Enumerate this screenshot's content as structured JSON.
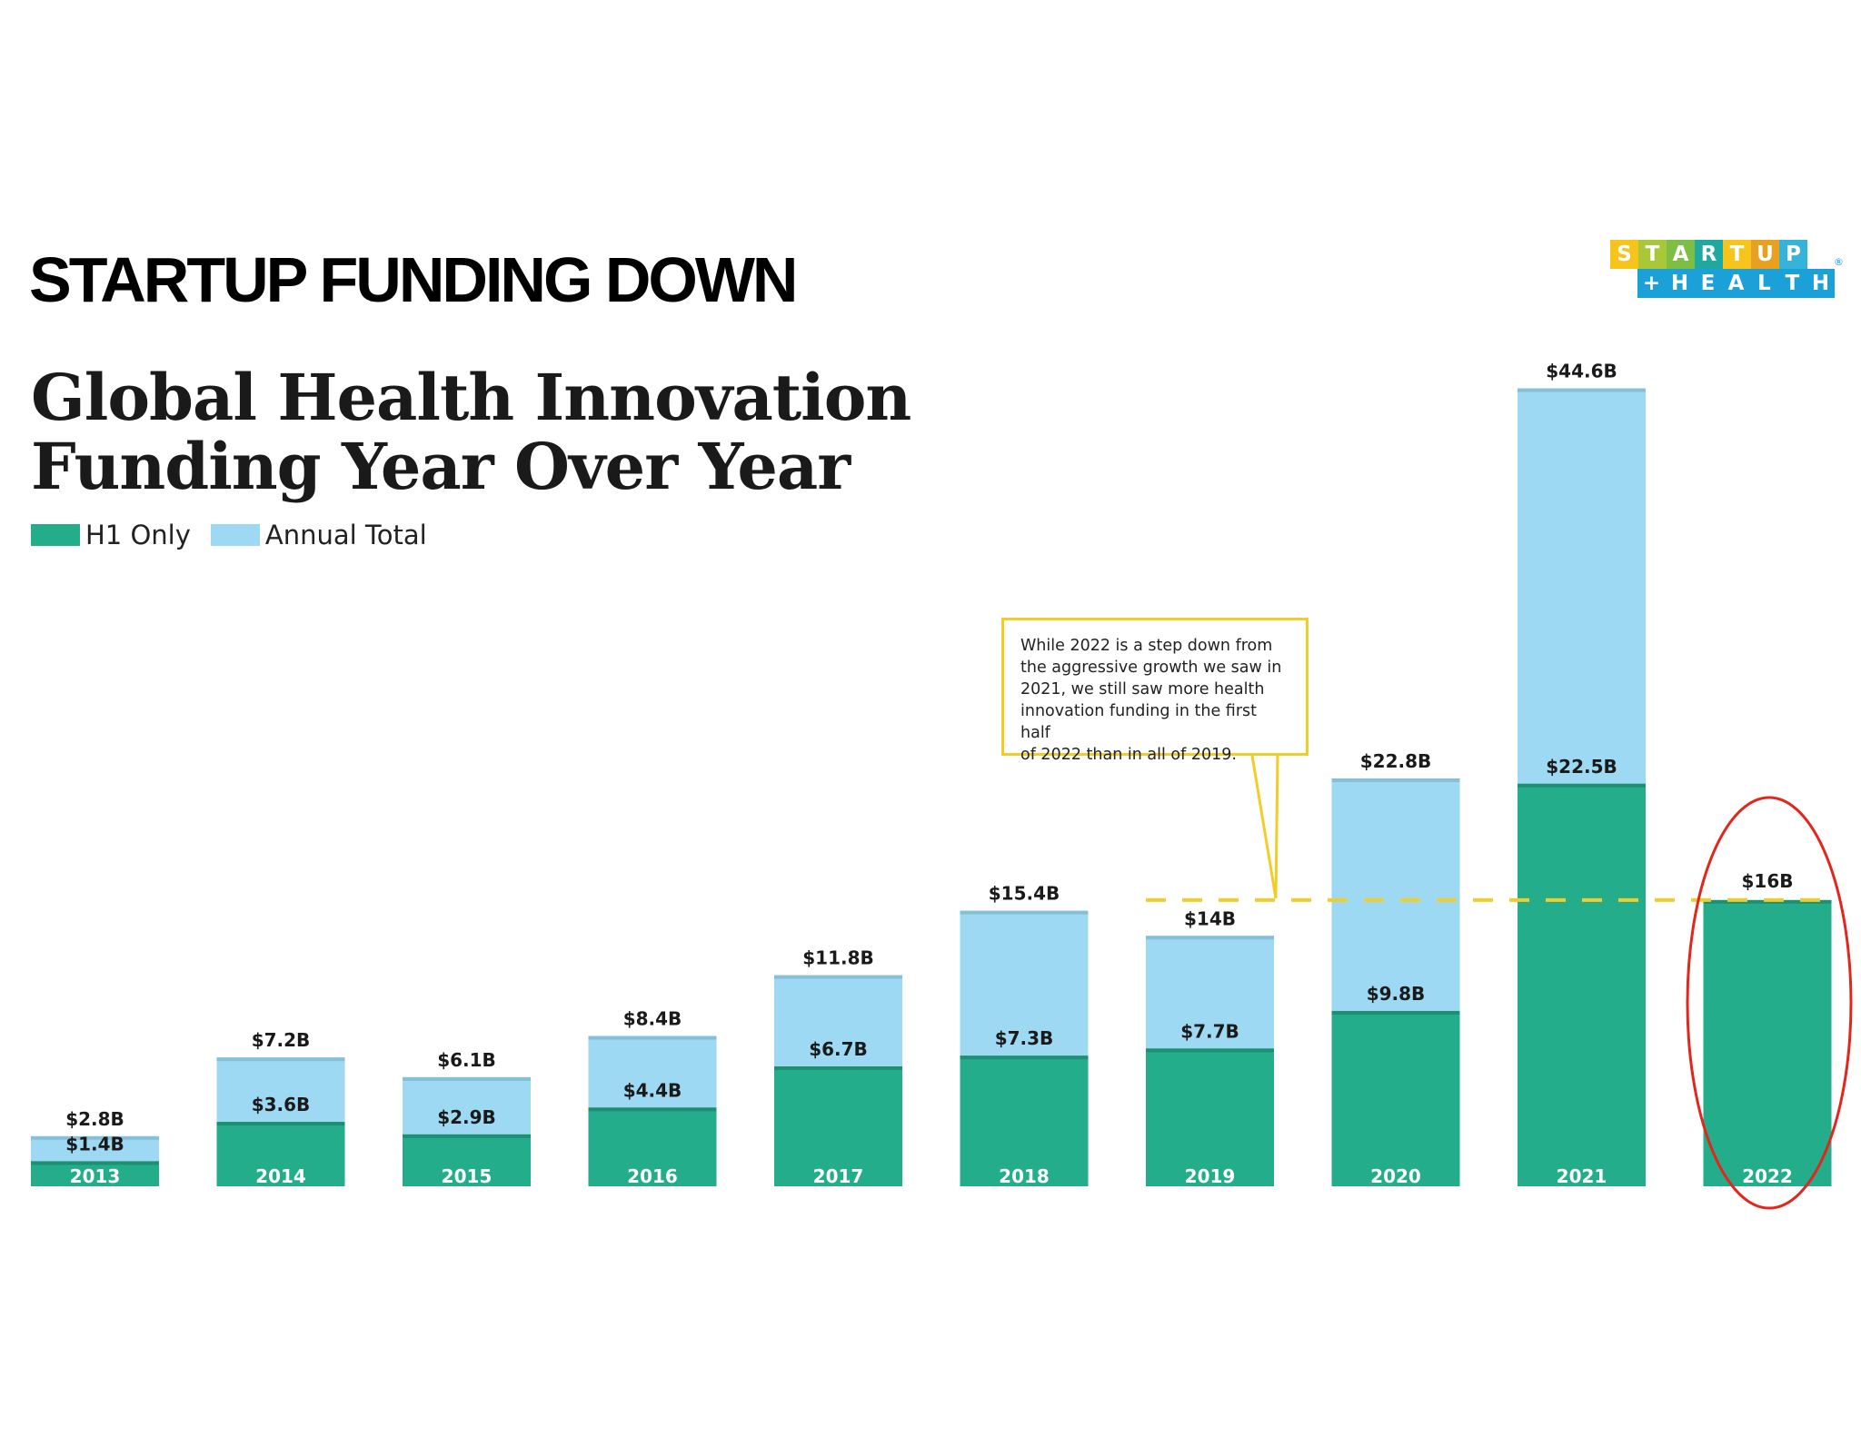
{
  "headline": "STARTUP FUNDING DOWN",
  "logo": {
    "row1": [
      "S",
      "T",
      "A",
      "R",
      "T",
      "U",
      "P"
    ],
    "row2": [
      "+",
      "H",
      "E",
      "A",
      "L",
      "T",
      "H"
    ],
    "row1_colors": [
      "#f6c41b",
      "#a8c83a",
      "#7dbf45",
      "#1fa8a0",
      "#f6c41b",
      "#e8a020",
      "#36b3d8"
    ],
    "row2_colors": [
      "#1ba0d8",
      "#1ba0d8",
      "#1ba0d8",
      "#1ba0d8",
      "#1ba0d8",
      "#1ba0d8",
      "#1ba0d8"
    ],
    "registered": "®"
  },
  "colors": {
    "h1": "#24ad8a",
    "annual": "#9dd9f3",
    "h1_top": "#1d8f72",
    "annual_top": "#86bfd8",
    "annotation": "#f2cd2a",
    "highlight": "#e3261b"
  },
  "chart_data": {
    "type": "bar",
    "title": "Global Health Innovation Funding Year Over Year",
    "title_lines": [
      "Global Health Innovation",
      "Funding Year Over Year"
    ],
    "legend": [
      "H1 Only",
      "Annual Total"
    ],
    "legend_position": "top-left",
    "grid": false,
    "ylim": [
      0,
      46
    ],
    "categories": [
      "2013",
      "2014",
      "2015",
      "2016",
      "2017",
      "2018",
      "2019",
      "2020",
      "2021",
      "2022"
    ],
    "series": [
      {
        "name": "H1 Only",
        "values": [
          1.4,
          3.6,
          2.9,
          4.4,
          6.7,
          7.3,
          7.7,
          9.8,
          22.5,
          16
        ],
        "labels": [
          "$1.4B",
          "$3.6B",
          "$2.9B",
          "$4.4B",
          "$6.7B",
          "$7.3B",
          "$7.7B",
          "$9.8B",
          "$22.5B",
          "$16B"
        ]
      },
      {
        "name": "Annual Total",
        "values": [
          2.8,
          7.2,
          6.1,
          8.4,
          11.8,
          15.4,
          14,
          22.8,
          44.6,
          null
        ],
        "labels": [
          "$2.8B",
          "$7.2B",
          "$6.1B",
          "$8.4B",
          "$11.8B",
          "$15.4B",
          "$14B",
          "$22.8B",
          "$44.6B",
          ""
        ]
      }
    ],
    "reference_line": {
      "value": 16,
      "style": "dashed"
    },
    "annotation": {
      "lines": [
        "While 2022 is a step down from",
        "the aggressive growth we saw in",
        "2021, we still saw more health",
        "innovation funding in the first half",
        "of 2022 than in all of 2019."
      ],
      "points_to_category": "2019"
    },
    "highlighted_category": "2022"
  }
}
